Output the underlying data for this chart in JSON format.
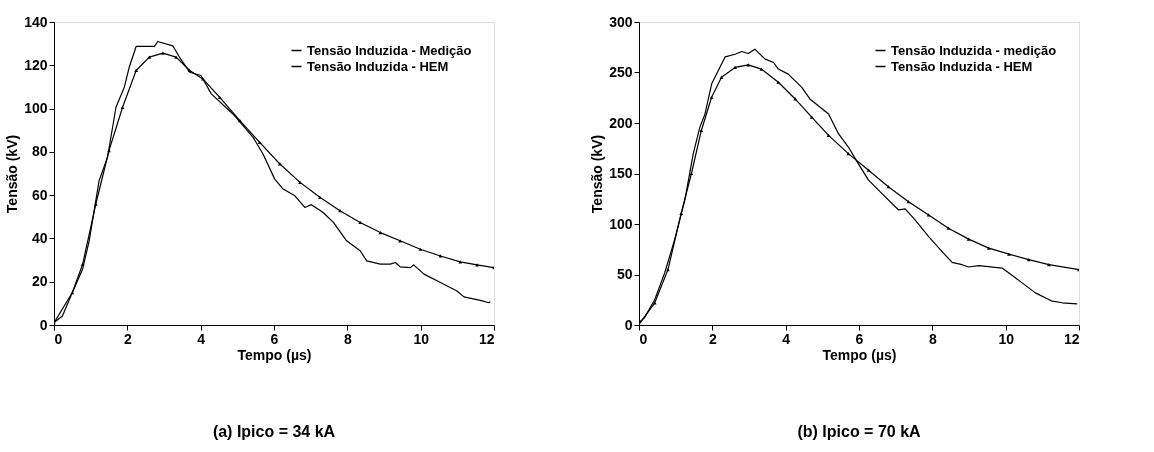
{
  "chart_data": [
    {
      "type": "line",
      "xlabel": "Tempo (µs)",
      "ylabel": "Tensão (kV)",
      "xlim": [
        0,
        12
      ],
      "xticks": [
        0,
        2,
        4,
        6,
        8,
        10,
        12
      ],
      "ylim": [
        0,
        140
      ],
      "yticks": [
        0,
        20,
        40,
        60,
        80,
        100,
        120,
        140
      ],
      "grid": false,
      "legend": "top right",
      "annotations": [
        "(a) Ipico = 34 kA"
      ],
      "series": [
        {
          "name": "Tensão Induzida - Medição",
          "color": "#000000",
          "marker": "none",
          "x": [
            0,
            0.23,
            0.5,
            0.78,
            0.96,
            1.23,
            1.46,
            1.69,
            1.92,
            2.05,
            2.24,
            2.74,
            2.83,
            3.24,
            3.42,
            3.7,
            4.01,
            4.29,
            4.88,
            5.43,
            5.7,
            6.02,
            6.25,
            6.57,
            6.84,
            7.02,
            7.34,
            7.62,
            7.98,
            8.35,
            8.53,
            8.9,
            9.17,
            9.31,
            9.44,
            9.72,
            9.81,
            10.09,
            10.54,
            10.99,
            11.18,
            11.63,
            11.86,
            11.9
          ],
          "values": [
            1.1,
            4.2,
            15,
            25.8,
            38.9,
            66.7,
            77.5,
            100.6,
            110,
            119,
            128.7,
            128.7,
            131,
            129,
            123.8,
            116.8,
            115.3,
            106.8,
            97.5,
            86.7,
            79,
            67.4,
            62.8,
            59.7,
            54.3,
            55.6,
            52,
            47.4,
            38.9,
            34.3,
            29.6,
            28.1,
            28.1,
            28.9,
            26.9,
            26.5,
            27.8,
            23.5,
            19.6,
            15.7,
            13,
            11.4,
            10.3,
            10.8
          ]
        },
        {
          "name": "Tensão Induzida - HEM",
          "color": "#000000",
          "marker": "triangle",
          "x": [
            0,
            0.5,
            0.78,
            1.14,
            1.5,
            1.87,
            2.24,
            2.6,
            2.97,
            3.33,
            3.7,
            4.06,
            4.52,
            5.07,
            5.61,
            6.16,
            6.71,
            7.25,
            7.8,
            8.35,
            8.9,
            9.44,
            9.99,
            10.54,
            11.08,
            11.54,
            12
          ],
          "values": [
            1,
            15,
            28,
            55.9,
            80.6,
            100.6,
            117.6,
            123.8,
            125.6,
            123.8,
            117.6,
            113.7,
            105.2,
            94.4,
            84.4,
            74.4,
            65.9,
            59,
            52.8,
            47.4,
            42.7,
            38.9,
            35,
            31.9,
            29.2,
            27.8,
            26.5
          ]
        }
      ]
    },
    {
      "type": "line",
      "xlabel": "Tempo (µs)",
      "ylabel": "Tensão (kV)",
      "xlim": [
        0,
        12
      ],
      "xticks": [
        0,
        2,
        4,
        6,
        8,
        10,
        12
      ],
      "ylim": [
        0,
        300
      ],
      "yticks": [
        0,
        50,
        100,
        150,
        200,
        250,
        300
      ],
      "grid": false,
      "legend": "top right",
      "annotations": [
        "(b) Ipico = 70 kA"
      ],
      "series": [
        {
          "name": "Tensão Induzida - medição",
          "color": "#000000",
          "marker": "none",
          "x": [
            0,
            0.15,
            0.43,
            0.7,
            0.97,
            1.25,
            1.48,
            1.66,
            1.8,
            1.98,
            2.16,
            2.35,
            2.62,
            2.8,
            2.98,
            3.16,
            3.44,
            3.67,
            3.8,
            4.07,
            4.44,
            4.66,
            5.17,
            5.44,
            5.71,
            5.98,
            6.26,
            6.62,
            7.08,
            7.26,
            7.53,
            7.9,
            8.26,
            8.54,
            8.81,
            8.99,
            9.27,
            9.9,
            10.09,
            10.45,
            10.81,
            11.27,
            11.54,
            11.95
          ],
          "values": [
            2.3,
            7.2,
            25.3,
            51.5,
            84.3,
            123.7,
            169.7,
            195.9,
            209,
            238.6,
            251.7,
            265.5,
            268.1,
            270.8,
            268.8,
            273.1,
            263.2,
            259.9,
            253.4,
            248.4,
            235.3,
            223.8,
            209,
            189.4,
            176.2,
            159.8,
            143.4,
            130.3,
            113.9,
            114.9,
            104,
            87.6,
            72.9,
            62,
            59.7,
            57.4,
            58.7,
            56.4,
            51.5,
            41.7,
            31.8,
            23.6,
            22,
            21
          ]
        },
        {
          "name": "Tensão Induzida - HEM",
          "color": "#000000",
          "marker": "triangle",
          "x": [
            0,
            0.43,
            0.79,
            1.15,
            1.43,
            1.7,
            1.98,
            2.25,
            2.62,
            2.98,
            3.34,
            3.8,
            4.26,
            4.71,
            5.17,
            5.71,
            6.26,
            6.8,
            7.35,
            7.9,
            8.44,
            8.99,
            9.54,
            10.09,
            10.63,
            11.18,
            12
          ],
          "values": [
            0.7,
            22,
            54.8,
            110.6,
            150,
            192.6,
            225.5,
            245.2,
            255,
            257.6,
            253.4,
            240.3,
            223.8,
            205.8,
            187.7,
            169.7,
            153.3,
            136.9,
            122.1,
            109,
            95.8,
            85,
            76.1,
            70.2,
            64.7,
            59.7,
            54.8
          ]
        }
      ]
    }
  ]
}
